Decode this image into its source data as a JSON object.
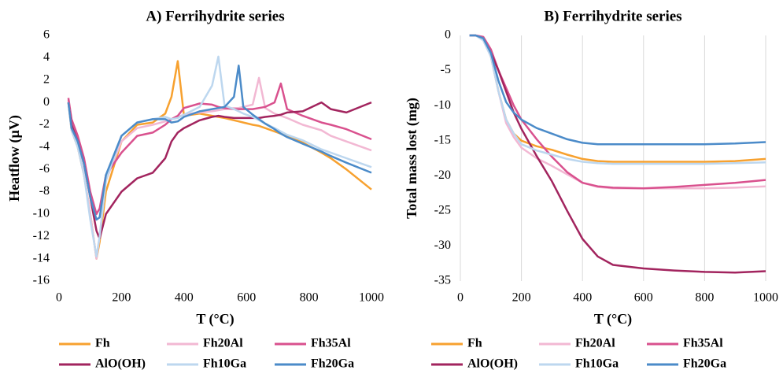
{
  "chart_data": [
    {
      "type": "line",
      "title": "A)  Ferrihydrite series",
      "y_label": "Heatflow (µV)",
      "x_label": "T (°C)",
      "x": [
        30,
        40,
        60,
        80,
        100,
        120,
        130,
        150,
        200,
        250,
        300,
        340,
        360,
        380,
        400,
        450,
        490,
        510,
        530,
        560,
        575,
        590,
        620,
        640,
        660,
        690,
        710,
        730,
        780,
        840,
        870,
        920,
        1000
      ],
      "xlim": [
        0,
        1000
      ],
      "xticks": [
        0,
        200,
        400,
        600,
        800,
        1000
      ],
      "ylim": [
        -16,
        6
      ],
      "yticks": [
        -16,
        -14,
        -12,
        -10,
        -8,
        -6,
        -4,
        -2,
        0,
        2,
        4,
        6
      ],
      "grid": false,
      "series": [
        {
          "name": "Fh",
          "color": "#f7a12f",
          "values": [
            0,
            -2.5,
            -4,
            -6.5,
            -10,
            -14,
            -12.5,
            -8,
            -3.5,
            -2,
            -1.8,
            -1,
            0.5,
            3.7,
            -1.2,
            -1,
            -1.2,
            -1.3,
            -1.4,
            -1.6,
            -1.7,
            -1.8,
            -2,
            -2.1,
            -2.3,
            -2.6,
            -2.8,
            -3,
            -3.6,
            -4.5,
            -5,
            -6,
            -7.8
          ]
        },
        {
          "name": "Fh20Al",
          "color": "#f2b8d3",
          "values": [
            0.2,
            -2.5,
            -4,
            -6.5,
            -10,
            -14,
            -12,
            -7,
            -3.5,
            -2.3,
            -2,
            -1.7,
            -1.5,
            -1.3,
            -1.1,
            -0.9,
            -0.8,
            -0.7,
            -0.6,
            -0.5,
            -0.5,
            -0.4,
            -0.2,
            2.2,
            -0.5,
            -1,
            -1.2,
            -1.4,
            -2,
            -2.5,
            -3,
            -3.5,
            -4.3
          ]
        },
        {
          "name": "Fh35Al",
          "color": "#d9518e",
          "values": [
            0.4,
            -1.5,
            -3,
            -5,
            -8,
            -10,
            -9.5,
            -6.5,
            -4.5,
            -3,
            -2.7,
            -2,
            -1.5,
            -1.2,
            -0.5,
            -0.1,
            -0.2,
            -0.4,
            -0.5,
            -0.6,
            -0.6,
            -0.6,
            -0.6,
            -0.5,
            -0.4,
            0,
            1.7,
            -0.6,
            -1.2,
            -1.8,
            -2,
            -2.4,
            -3.3
          ]
        },
        {
          "name": "AlO(OH)",
          "color": "#a2245e",
          "values": [
            0,
            -2,
            -3.5,
            -5.5,
            -8.5,
            -11.5,
            -12.2,
            -10,
            -8,
            -6.8,
            -6.3,
            -5,
            -3.5,
            -2.7,
            -2.3,
            -1.6,
            -1.3,
            -1.2,
            -1.3,
            -1.4,
            -1.4,
            -1.4,
            -1.4,
            -1.4,
            -1.3,
            -1.2,
            -1.1,
            -0.9,
            -0.8,
            0,
            -0.6,
            -0.9,
            0
          ]
        },
        {
          "name": "Fh10Ga",
          "color": "#bdd7ef",
          "values": [
            0,
            -2.5,
            -4,
            -6.5,
            -10.5,
            -13.8,
            -12,
            -7,
            -3,
            -1.8,
            -1.5,
            -1.3,
            -1.5,
            -1.4,
            -1.1,
            -0.4,
            1.5,
            4.1,
            -0.3,
            -0.6,
            -0.8,
            -1,
            -1.3,
            -1.6,
            -1.9,
            -2.3,
            -2.6,
            -2.9,
            -3.4,
            -4.2,
            -4.5,
            -5,
            -5.8
          ]
        },
        {
          "name": "Fh20Ga",
          "color": "#4b8bc9",
          "values": [
            0,
            -2.3,
            -3.5,
            -5.5,
            -8.5,
            -10.5,
            -10.3,
            -6.5,
            -3,
            -1.8,
            -1.5,
            -1.5,
            -1.8,
            -1.7,
            -1.3,
            -0.8,
            -0.6,
            -0.5,
            -0.4,
            0.5,
            3.3,
            -0.4,
            -1.1,
            -1.5,
            -1.9,
            -2.4,
            -2.8,
            -3.1,
            -3.7,
            -4.4,
            -4.8,
            -5.4,
            -6.3
          ]
        }
      ]
    },
    {
      "type": "line",
      "title": "B)  Ferrihydrite series",
      "y_label": "Total mass lost (mg)",
      "x_label": "T (°C)",
      "x": [
        30,
        50,
        75,
        100,
        125,
        150,
        175,
        200,
        250,
        300,
        350,
        400,
        450,
        500,
        600,
        700,
        800,
        900,
        1000
      ],
      "xlim": [
        0,
        1000
      ],
      "xticks": [
        0,
        200,
        400,
        600,
        800,
        1000
      ],
      "ylim": [
        -35,
        0
      ],
      "yticks": [
        -35,
        -30,
        -25,
        -20,
        -15,
        -10,
        -5,
        0
      ],
      "grid": true,
      "series": [
        {
          "name": "Fh",
          "color": "#f7a12f",
          "values": [
            0,
            0,
            -0.5,
            -3,
            -8,
            -12,
            -14,
            -15,
            -15.8,
            -16.3,
            -17,
            -17.6,
            -17.9,
            -18,
            -18,
            -18,
            -18,
            -17.9,
            -17.6
          ]
        },
        {
          "name": "Fh20Al",
          "color": "#f2b8d3",
          "values": [
            0,
            0,
            -0.7,
            -3,
            -8,
            -12.5,
            -14.5,
            -16,
            -17.5,
            -18.6,
            -19.8,
            -21,
            -21.6,
            -21.8,
            -21.8,
            -21.8,
            -21.8,
            -21.7,
            -21.5
          ]
        },
        {
          "name": "Fh35Al",
          "color": "#d9518e",
          "values": [
            0,
            0,
            -0.2,
            -2,
            -5,
            -7.5,
            -10,
            -12,
            -14.8,
            -17.3,
            -19.5,
            -21,
            -21.5,
            -21.7,
            -21.8,
            -21.6,
            -21.3,
            -21,
            -20.6
          ]
        },
        {
          "name": "AlO(OH)",
          "color": "#a2245e",
          "values": [
            0,
            0,
            -0.5,
            -2.5,
            -5,
            -8,
            -11,
            -13.3,
            -17.2,
            -20.8,
            -25,
            -29,
            -31.5,
            -32.7,
            -33.2,
            -33.5,
            -33.7,
            -33.8,
            -33.6
          ]
        },
        {
          "name": "Fh10Ga",
          "color": "#bdd7ef",
          "values": [
            0,
            0,
            -0.7,
            -3,
            -8,
            -12,
            -14,
            -15.5,
            -16.4,
            -17,
            -17.6,
            -18,
            -18.2,
            -18.3,
            -18.3,
            -18.3,
            -18.3,
            -18.2,
            -18.1
          ]
        },
        {
          "name": "Fh20Ga",
          "color": "#4b8bc9",
          "values": [
            0,
            0,
            -0.4,
            -2.5,
            -6.5,
            -9.5,
            -11,
            -12,
            -13.2,
            -14,
            -14.8,
            -15.3,
            -15.5,
            -15.5,
            -15.5,
            -15.5,
            -15.5,
            -15.4,
            -15.2
          ]
        }
      ]
    }
  ]
}
